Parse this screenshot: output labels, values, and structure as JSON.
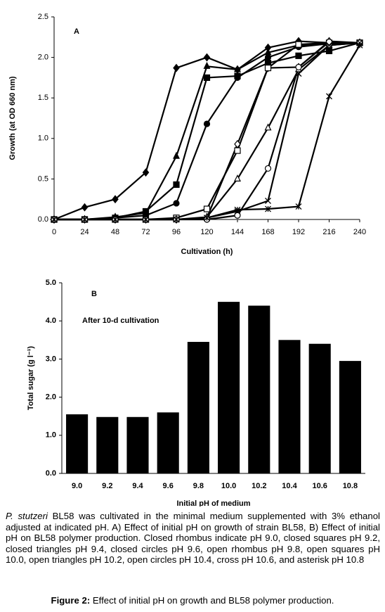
{
  "chart_data": [
    {
      "type": "line",
      "annotation": "A",
      "x_label": "Cultivation (h)",
      "y_label": "Growth (at OD 660 nm)",
      "x": [
        0,
        24,
        48,
        72,
        96,
        120,
        144,
        168,
        192,
        216,
        240
      ],
      "xlim": [
        0,
        240
      ],
      "xticks": [
        0,
        24,
        48,
        72,
        96,
        120,
        144,
        168,
        192,
        216,
        240
      ],
      "ylim": [
        0,
        2.5
      ],
      "yticks": [
        {
          "value": 0,
          "label": "0.0"
        },
        0.5,
        {
          "value": 1,
          "label": "1.0"
        },
        1.5,
        {
          "value": 2,
          "label": "2.0"
        },
        2.5
      ],
      "series": [
        {
          "marker": "diamond",
          "filled": true,
          "color": "#000000",
          "values": [
            0,
            0.15,
            0.25,
            0.58,
            1.87,
            2.0,
            1.85,
            2.12,
            2.2,
            2.18,
            2.18
          ]
        },
        {
          "marker": "square",
          "filled": true,
          "color": "#000000",
          "values": [
            0,
            0,
            0.02,
            0.1,
            0.43,
            1.75,
            1.77,
            1.93,
            2.02,
            2.08,
            2.18
          ]
        },
        {
          "marker": "triangle",
          "filled": true,
          "color": "#000000",
          "values": [
            0,
            0,
            0.03,
            0.08,
            0.78,
            1.89,
            1.85,
            2.06,
            2.15,
            2.17,
            2.18
          ]
        },
        {
          "marker": "circle",
          "filled": true,
          "color": "#000000",
          "values": [
            0,
            0,
            0.02,
            0.05,
            0.2,
            1.18,
            1.75,
            2.0,
            2.13,
            2.17,
            2.18
          ]
        },
        {
          "marker": "diamond",
          "filled": false,
          "color": "#000000",
          "values": [
            0,
            0,
            0,
            0,
            0,
            0.02,
            0.93,
            1.87,
            1.88,
            2.2,
            2.18
          ]
        },
        {
          "marker": "square",
          "filled": false,
          "color": "#000000",
          "values": [
            0,
            0,
            0,
            0,
            0.02,
            0.13,
            0.85,
            1.87,
            2.16,
            2.18,
            2.18
          ]
        },
        {
          "marker": "triangle",
          "filled": false,
          "color": "#000000",
          "values": [
            0,
            0,
            0,
            0,
            0,
            0.03,
            0.5,
            1.13,
            1.85,
            2.15,
            2.18
          ]
        },
        {
          "marker": "circle",
          "filled": false,
          "color": "#000000",
          "values": [
            0,
            0,
            0,
            0,
            0,
            0,
            0.05,
            0.63,
            1.88,
            2.19,
            2.18
          ]
        },
        {
          "marker": "cross",
          "filled": false,
          "color": "#000000",
          "values": [
            0,
            0,
            0,
            0,
            0,
            0.02,
            0.1,
            0.23,
            1.8,
            2.15,
            2.18
          ]
        },
        {
          "marker": "asterisk",
          "filled": false,
          "color": "#000000",
          "values": [
            0,
            0,
            0,
            0,
            0,
            0.02,
            0.12,
            0.13,
            0.16,
            1.52,
            2.15
          ]
        }
      ]
    },
    {
      "type": "bar",
      "annotation": "B",
      "note": "After 10-d cultivation",
      "x_label": "Initial pH of medium",
      "y_label": "Total sugar (g l⁻¹)",
      "categories": [
        "9.0",
        "9.2",
        "9.4",
        "9.6",
        "9.8",
        "10.0",
        "10.2",
        "10.4",
        "10.6",
        "10.8"
      ],
      "values": [
        1.55,
        1.48,
        1.48,
        1.6,
        3.45,
        4.5,
        4.4,
        3.5,
        3.4,
        2.95
      ],
      "color": "#000000",
      "ylim": [
        0,
        5
      ],
      "yticks": [
        {
          "value": 0,
          "label": "0.0"
        },
        {
          "value": 1,
          "label": "1.0"
        },
        {
          "value": 2,
          "label": "2.0"
        },
        {
          "value": 3,
          "label": "3.0"
        },
        {
          "value": 4,
          "label": "4.0"
        },
        {
          "value": 5,
          "label": "5.0"
        }
      ]
    }
  ],
  "caption": {
    "species": "P. stutzeri",
    "text": " BL58 was cultivated in the minimal medium supplemented with 3% ethanol adjusted at indicated pH. A) Effect of initial pH on growth of strain BL58, B) Effect of initial pH on BL58 polymer production. Closed rhombus indicate pH 9.0, closed squares pH 9.2, closed triangles pH 9.4, closed circles pH 9.6, open rhombus pH 9.8, open squares pH 10.0, open triangles pH 10.2, open circles pH 10.4, cross pH 10.6, and asterisk pH 10.8",
    "figure_label": "Figure 2:",
    "figure_title": " Effect of initial pH on growth and BL58 polymer production."
  }
}
